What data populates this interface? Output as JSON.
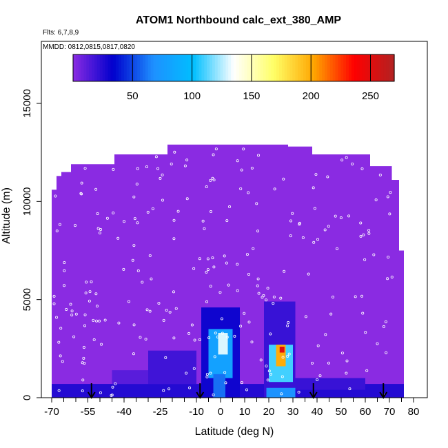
{
  "chart_data": {
    "type": "heatmap",
    "title": "ATOM1 Northbound calc_ext_380_AMP",
    "subtitle_flights": "Flts: 6,7,8,9",
    "subtitle_dates": "MMDD: 0812,0815,0817,0820",
    "xlabel": "Latitude (deg N)",
    "ylabel": "Altitude (m)",
    "xlim": [
      -70,
      80
    ],
    "ylim": [
      0,
      17500
    ],
    "x_tick_labels": [
      "-70",
      "-55",
      "-40",
      "-25",
      "-10",
      "0",
      "10",
      "20",
      "30",
      "40",
      "50",
      "60",
      "70",
      "80"
    ],
    "x_tick_values": [
      -70,
      -55,
      -40,
      -25,
      -10,
      0,
      10,
      20,
      30,
      40,
      50,
      60,
      70,
      80
    ],
    "x_minor_ticks": [
      -65,
      -60,
      -50,
      -45,
      -35,
      -30,
      -20,
      -15,
      -5,
      5,
      15,
      25,
      35,
      45,
      55,
      65,
      75
    ],
    "y_tick_labels": [
      "0",
      "5000",
      "10000",
      "15000"
    ],
    "y_tick_values": [
      0,
      5000,
      10000,
      15000
    ],
    "colorbar": {
      "range": [
        0,
        270
      ],
      "tick_labels": [
        "50",
        "100",
        "150",
        "200",
        "250"
      ],
      "tick_values": [
        50,
        100,
        150,
        200,
        250
      ],
      "colors": [
        "#8a2be2",
        "#0000cd",
        "#1e90ff",
        "#00bfff",
        "#ffffff",
        "#ffff66",
        "#ffa500",
        "#ff0000",
        "#b22222"
      ]
    },
    "arrow_latitudes": [
      -53.5,
      -8.5,
      38.5,
      67.5
    ],
    "columns": [
      {
        "lat0": -70,
        "lat1": -68,
        "top": 10600
      },
      {
        "lat0": -68,
        "lat1": -66,
        "top": 11300
      },
      {
        "lat0": -66,
        "lat1": -62,
        "top": 11500
      },
      {
        "lat0": -62,
        "lat1": -44,
        "top": 11900
      },
      {
        "lat0": -44,
        "lat1": -22,
        "top": 12400
      },
      {
        "lat0": -22,
        "lat1": 28,
        "top": 12900
      },
      {
        "lat0": 28,
        "lat1": 38,
        "top": 12800
      },
      {
        "lat0": 38,
        "lat1": 62,
        "top": 12400
      },
      {
        "lat0": 62,
        "lat1": 71,
        "top": 11800
      },
      {
        "lat0": 71,
        "lat1": 74,
        "top": 11100
      },
      {
        "lat0": 74,
        "lat1": 76,
        "top": 7500
      }
    ],
    "features": [
      {
        "lat0": -70,
        "lat1": 76,
        "alt0": 0,
        "alt1": 700,
        "value": 25
      },
      {
        "lat0": -30,
        "lat1": -10,
        "alt0": 700,
        "alt1": 2400,
        "value": 18
      },
      {
        "lat0": -45,
        "lat1": -30,
        "alt0": 700,
        "alt1": 1400,
        "value": 12
      },
      {
        "lat0": 30,
        "lat1": 60,
        "alt0": 400,
        "alt1": 1000,
        "value": 20
      },
      {
        "lat0": -8,
        "lat1": 8,
        "alt0": 0,
        "alt1": 4600,
        "value": 30
      },
      {
        "lat0": -5,
        "lat1": 5,
        "alt0": 1000,
        "alt1": 3500,
        "value": 80
      },
      {
        "lat0": -1,
        "lat1": 3,
        "alt0": 2200,
        "alt1": 3300,
        "value": 130
      },
      {
        "lat0": -3,
        "lat1": 2,
        "alt0": 0,
        "alt1": 1200,
        "value": 60
      },
      {
        "lat0": 18,
        "lat1": 31,
        "alt0": 0,
        "alt1": 4900,
        "value": 20
      },
      {
        "lat0": 20,
        "lat1": 30,
        "alt0": 800,
        "alt1": 2700,
        "value": 110
      },
      {
        "lat0": 23,
        "lat1": 27,
        "alt0": 1600,
        "alt1": 2700,
        "value": 200
      },
      {
        "lat0": 24.5,
        "lat1": 26.5,
        "alt0": 2300,
        "alt1": 2600,
        "value": 250
      },
      {
        "lat0": 19,
        "lat1": 31,
        "alt0": 0,
        "alt1": 500,
        "value": 70
      }
    ]
  }
}
